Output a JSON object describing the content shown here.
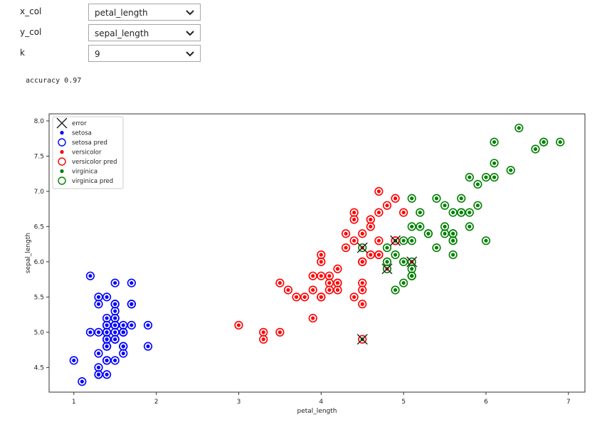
{
  "controls": [
    {
      "label": "x_col",
      "value": "petal_length"
    },
    {
      "label": "y_col",
      "value": "sepal_length"
    },
    {
      "label": "k",
      "value": "9"
    }
  ],
  "accuracy_text": "accuracy 0.97",
  "colors": {
    "setosa": "#0000ff",
    "versicolor": "#ff0000",
    "virginica": "#008000",
    "error": "#222222"
  },
  "chart_data": {
    "type": "scatter",
    "xlabel": "petal_length",
    "ylabel": "sepal_length",
    "xlim": [
      0.7,
      7.2
    ],
    "ylim": [
      4.15,
      8.1
    ],
    "x_ticks": [
      1,
      2,
      3,
      4,
      5,
      6,
      7
    ],
    "y_ticks": [
      4.5,
      5.0,
      5.5,
      6.0,
      6.5,
      7.0,
      7.5,
      8.0
    ],
    "x_tick_labels": [
      "1",
      "2",
      "3",
      "4",
      "5",
      "6",
      "7"
    ],
    "y_tick_labels": [
      "4.5",
      "5.0",
      "5.5",
      "6.0",
      "6.5",
      "7.0",
      "7.5",
      "8.0"
    ],
    "grid": false,
    "legend_position": "top-left",
    "legend": [
      "error",
      "setosa",
      "setosa pred",
      "versicolor",
      "versicolor pred",
      "virginica",
      "virginica pred"
    ],
    "series": [
      {
        "key": "setosa",
        "points": [
          [
            1.4,
            5.1
          ],
          [
            1.4,
            4.9
          ],
          [
            1.3,
            4.7
          ],
          [
            1.5,
            4.6
          ],
          [
            1.4,
            5.0
          ],
          [
            1.7,
            5.4
          ],
          [
            1.4,
            4.6
          ],
          [
            1.5,
            5.0
          ],
          [
            1.4,
            4.4
          ],
          [
            1.5,
            4.9
          ],
          [
            1.5,
            5.4
          ],
          [
            1.6,
            4.8
          ],
          [
            1.4,
            4.8
          ],
          [
            1.1,
            4.3
          ],
          [
            1.2,
            5.8
          ],
          [
            1.5,
            5.7
          ],
          [
            1.3,
            5.4
          ],
          [
            1.4,
            5.1
          ],
          [
            1.7,
            5.7
          ],
          [
            1.5,
            5.1
          ],
          [
            1.7,
            5.4
          ],
          [
            1.5,
            5.1
          ],
          [
            1.0,
            4.6
          ],
          [
            1.7,
            5.1
          ],
          [
            1.9,
            4.8
          ],
          [
            1.6,
            5.0
          ],
          [
            1.6,
            5.0
          ],
          [
            1.5,
            5.2
          ],
          [
            1.4,
            5.2
          ],
          [
            1.6,
            4.7
          ],
          [
            1.6,
            4.8
          ],
          [
            1.5,
            5.4
          ],
          [
            1.5,
            5.2
          ],
          [
            1.4,
            5.5
          ],
          [
            1.5,
            4.9
          ],
          [
            1.2,
            5.0
          ],
          [
            1.3,
            5.5
          ],
          [
            1.4,
            4.9
          ],
          [
            1.3,
            4.4
          ],
          [
            1.5,
            5.1
          ],
          [
            1.3,
            5.0
          ],
          [
            1.3,
            4.5
          ],
          [
            1.3,
            4.4
          ],
          [
            1.6,
            5.0
          ],
          [
            1.9,
            5.1
          ],
          [
            1.4,
            4.8
          ],
          [
            1.6,
            5.1
          ],
          [
            1.4,
            4.6
          ],
          [
            1.5,
            5.3
          ],
          [
            1.4,
            5.0
          ]
        ]
      },
      {
        "key": "versicolor",
        "points": [
          [
            4.7,
            7.0
          ],
          [
            4.5,
            6.4
          ],
          [
            4.9,
            6.9
          ],
          [
            4.0,
            5.5
          ],
          [
            4.6,
            6.5
          ],
          [
            4.5,
            5.7
          ],
          [
            4.7,
            6.3
          ],
          [
            3.3,
            4.9
          ],
          [
            4.6,
            6.6
          ],
          [
            3.9,
            5.2
          ],
          [
            3.5,
            5.0
          ],
          [
            4.2,
            5.9
          ],
          [
            4.0,
            6.0
          ],
          [
            4.7,
            6.1
          ],
          [
            3.6,
            5.6
          ],
          [
            4.4,
            6.7
          ],
          [
            4.5,
            5.6
          ],
          [
            4.1,
            5.8
          ],
          [
            4.5,
            6.2
          ],
          [
            3.9,
            5.6
          ],
          [
            4.8,
            5.9
          ],
          [
            4.0,
            6.1
          ],
          [
            4.9,
            6.3
          ],
          [
            4.7,
            6.1
          ],
          [
            4.3,
            6.4
          ],
          [
            4.4,
            6.6
          ],
          [
            4.8,
            6.8
          ],
          [
            5.0,
            6.7
          ],
          [
            4.5,
            6.0
          ],
          [
            3.5,
            5.7
          ],
          [
            3.8,
            5.5
          ],
          [
            3.7,
            5.5
          ],
          [
            3.9,
            5.8
          ],
          [
            5.1,
            6.0
          ],
          [
            4.5,
            5.4
          ],
          [
            4.5,
            6.0
          ],
          [
            4.7,
            6.7
          ],
          [
            4.4,
            6.3
          ],
          [
            4.1,
            5.6
          ],
          [
            4.0,
            5.5
          ],
          [
            4.4,
            5.5
          ],
          [
            4.6,
            6.1
          ],
          [
            4.0,
            5.8
          ],
          [
            3.3,
            5.0
          ],
          [
            4.2,
            5.6
          ],
          [
            4.2,
            5.7
          ],
          [
            4.2,
            5.7
          ],
          [
            4.3,
            6.2
          ],
          [
            3.0,
            5.1
          ],
          [
            4.1,
            5.7
          ]
        ]
      },
      {
        "key": "virginica",
        "points": [
          [
            6.0,
            6.3
          ],
          [
            5.1,
            5.8
          ],
          [
            5.9,
            7.1
          ],
          [
            5.6,
            6.3
          ],
          [
            5.8,
            6.5
          ],
          [
            6.6,
            7.6
          ],
          [
            4.5,
            4.9
          ],
          [
            6.3,
            7.3
          ],
          [
            5.8,
            6.7
          ],
          [
            6.1,
            7.2
          ],
          [
            5.1,
            6.5
          ],
          [
            5.3,
            6.4
          ],
          [
            5.5,
            6.8
          ],
          [
            5.0,
            5.7
          ],
          [
            5.1,
            5.8
          ],
          [
            5.3,
            6.4
          ],
          [
            5.5,
            6.5
          ],
          [
            6.7,
            7.7
          ],
          [
            6.9,
            7.7
          ],
          [
            5.0,
            6.0
          ],
          [
            5.7,
            6.9
          ],
          [
            4.9,
            5.6
          ],
          [
            6.7,
            7.7
          ],
          [
            4.9,
            6.3
          ],
          [
            5.7,
            6.7
          ],
          [
            6.0,
            7.2
          ],
          [
            4.8,
            6.2
          ],
          [
            4.9,
            6.1
          ],
          [
            5.6,
            6.4
          ],
          [
            5.8,
            7.2
          ],
          [
            6.1,
            7.4
          ],
          [
            6.4,
            7.9
          ],
          [
            5.6,
            6.4
          ],
          [
            5.1,
            6.3
          ],
          [
            5.6,
            6.1
          ],
          [
            6.1,
            7.7
          ],
          [
            5.6,
            6.3
          ],
          [
            5.5,
            6.4
          ],
          [
            4.8,
            6.0
          ],
          [
            5.4,
            6.9
          ],
          [
            5.6,
            6.7
          ],
          [
            5.1,
            6.9
          ],
          [
            5.1,
            5.8
          ],
          [
            5.9,
            6.8
          ],
          [
            5.7,
            6.7
          ],
          [
            5.2,
            6.7
          ],
          [
            5.0,
            6.3
          ],
          [
            5.2,
            6.5
          ],
          [
            5.4,
            6.2
          ],
          [
            5.1,
            5.9
          ]
        ]
      }
    ],
    "errors": [
      [
        4.5,
        6.2
      ],
      [
        4.8,
        5.9
      ],
      [
        4.9,
        6.3
      ],
      [
        5.1,
        6.0
      ],
      [
        4.5,
        4.9
      ]
    ],
    "error_predictions": [
      "virginica",
      "virginica",
      "versicolor",
      "virginica",
      "versicolor"
    ]
  }
}
